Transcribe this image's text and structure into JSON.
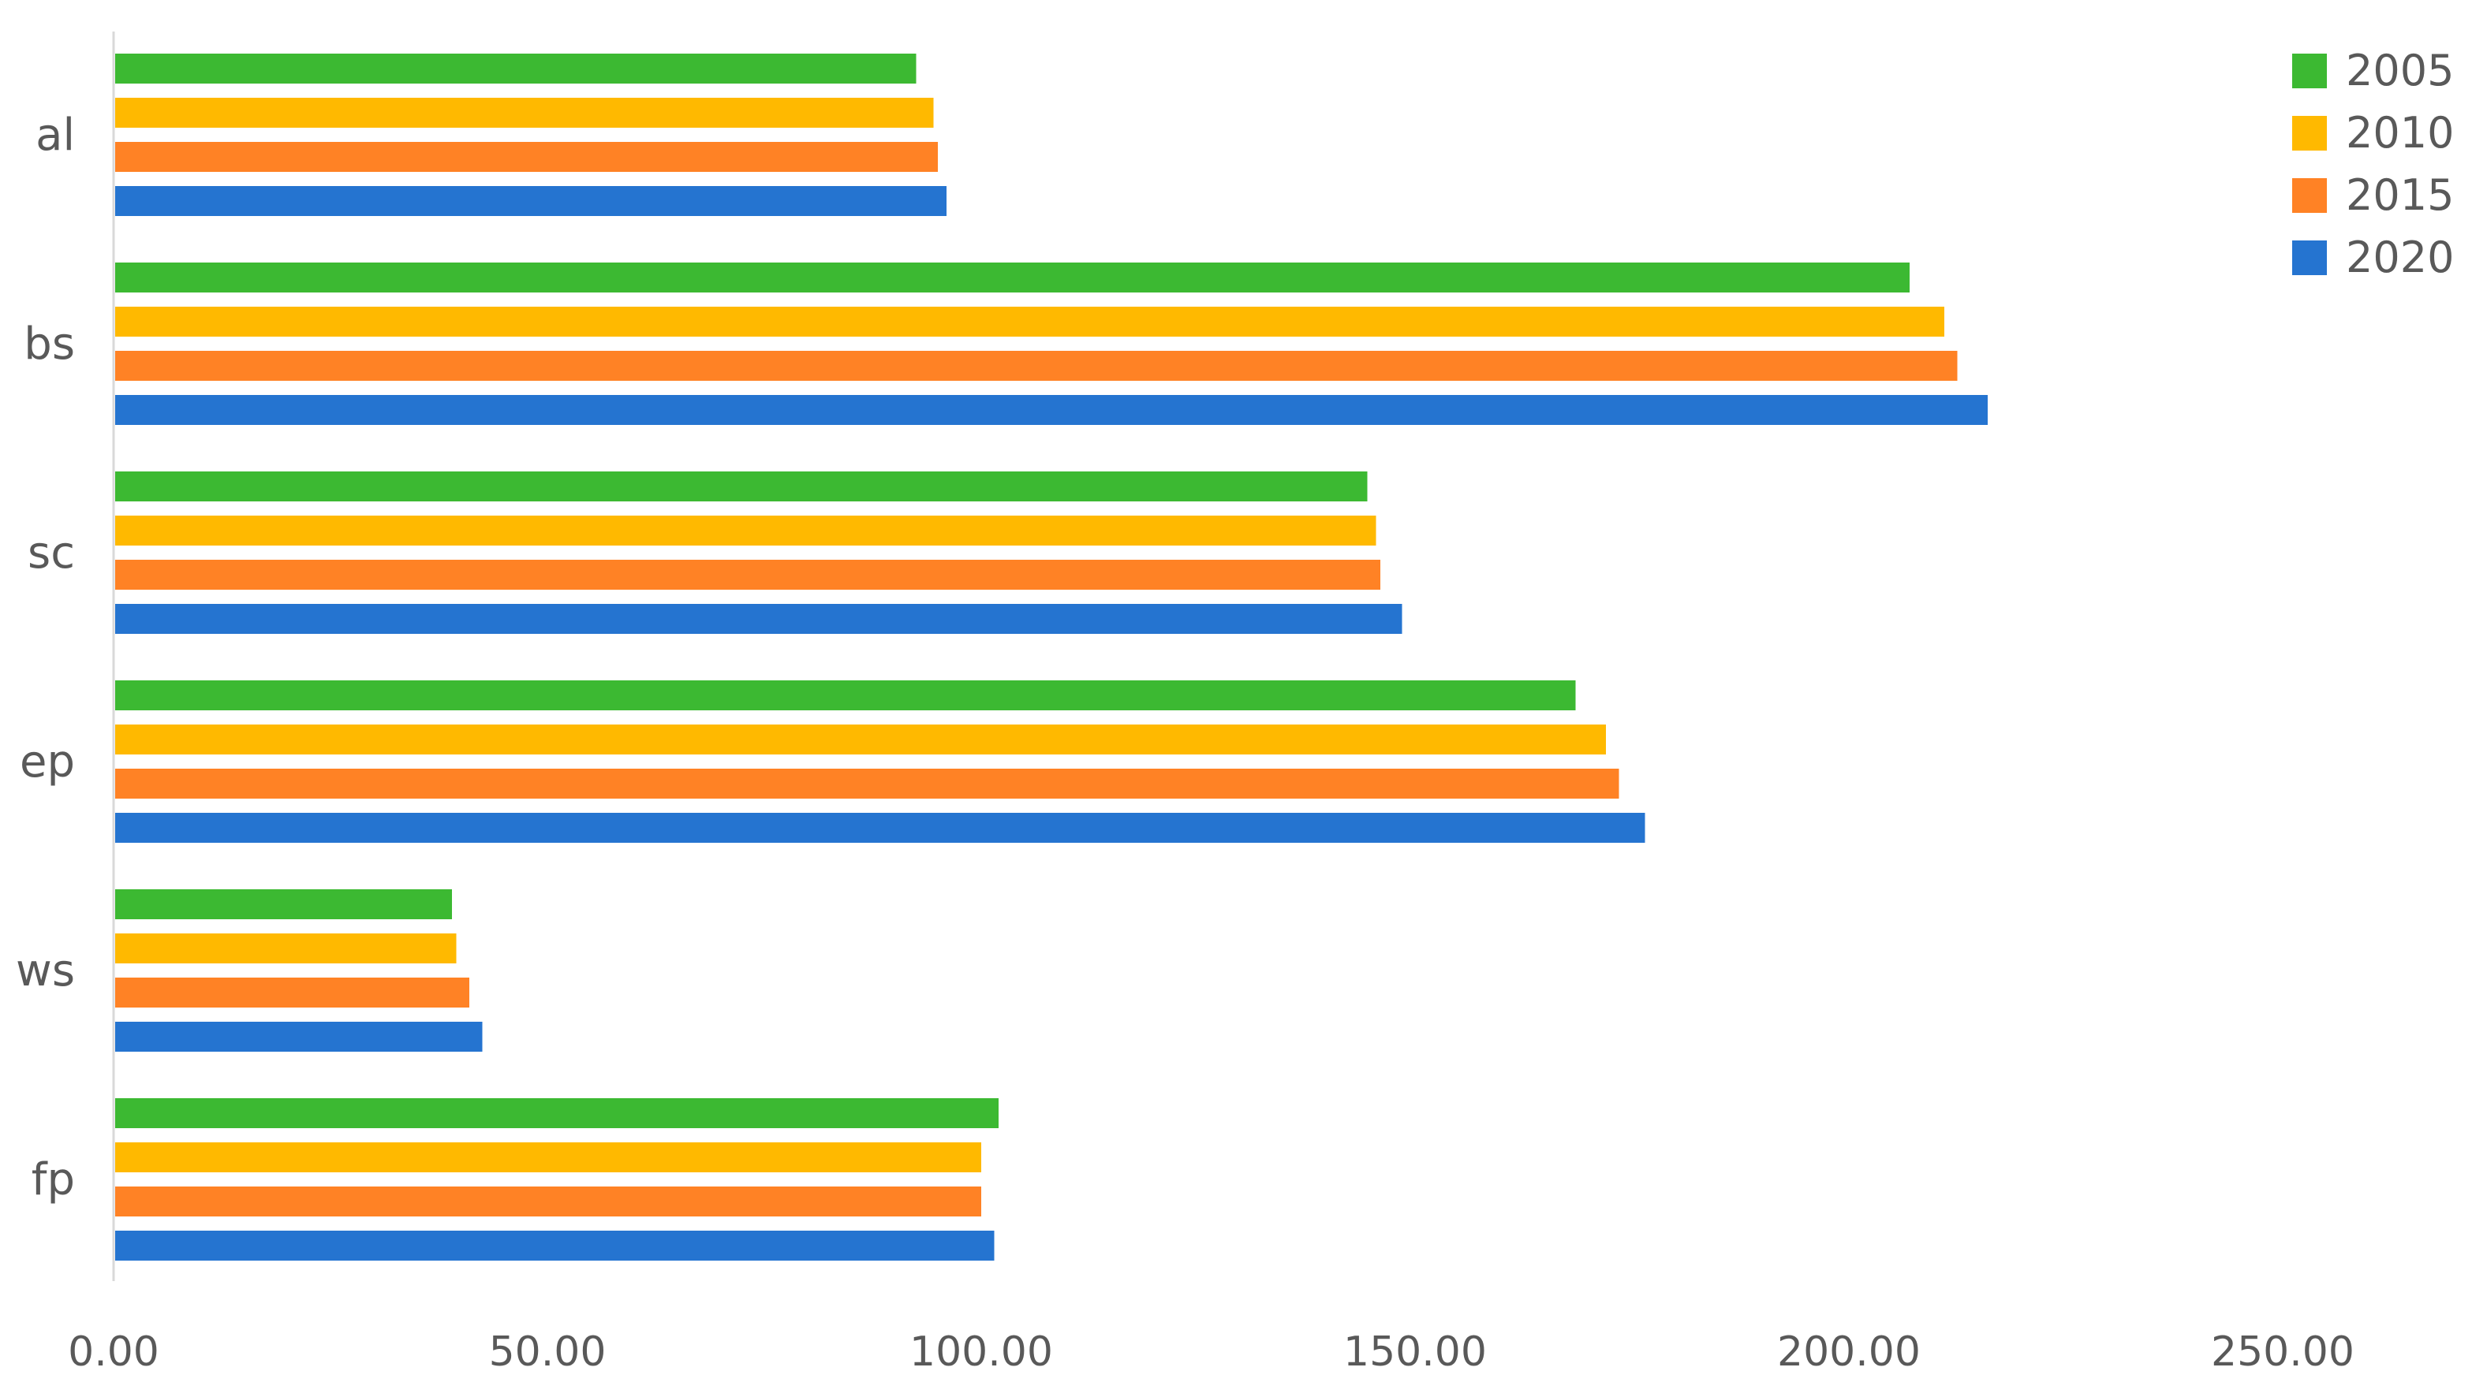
{
  "chart_data": {
    "type": "bar",
    "orientation": "horizontal",
    "categories": [
      "al",
      "bs",
      "sc",
      "ep",
      "ws",
      "fp"
    ],
    "series": [
      {
        "name": "2005",
        "color": "#3cb932",
        "values": [
          92.5,
          207.0,
          144.5,
          168.5,
          39.0,
          102.0
        ]
      },
      {
        "name": "2010",
        "color": "#ffb900",
        "values": [
          94.5,
          211.0,
          145.5,
          172.0,
          39.5,
          100.0
        ]
      },
      {
        "name": "2015",
        "color": "#ff8225",
        "values": [
          95.0,
          212.5,
          146.0,
          173.5,
          41.0,
          100.0
        ]
      },
      {
        "name": "2020",
        "color": "#2574d0",
        "values": [
          96.0,
          216.0,
          148.5,
          176.5,
          42.5,
          101.5
        ]
      }
    ],
    "x_ticks": [
      "0.00",
      "50.00",
      "100.00",
      "150.00",
      "200.00",
      "250.00"
    ],
    "xlim": [
      0,
      250
    ],
    "title": "",
    "xlabel": "",
    "ylabel": "",
    "grid": false,
    "legend_position": "top-right"
  }
}
